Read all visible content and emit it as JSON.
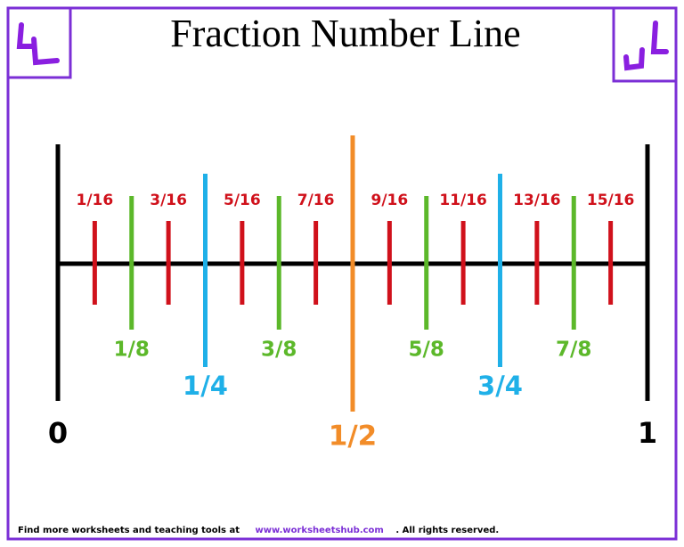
{
  "header": {
    "title": "Fraction Number Line"
  },
  "number_line": {
    "range": [
      0,
      1
    ],
    "endpoints": {
      "color": "#000000",
      "ticks": [
        0,
        1
      ]
    },
    "halves": {
      "color": "#f28c28",
      "ticks": [
        {
          "value": 0.5,
          "label": "1/2"
        }
      ]
    },
    "quarters": {
      "color": "#1fb0e8",
      "ticks": [
        {
          "value": 0.25,
          "label": "1/4"
        },
        {
          "value": 0.75,
          "label": "3/4"
        }
      ]
    },
    "eighths": {
      "color": "#5cb82a",
      "ticks": [
        {
          "value": 0.125,
          "label": "1/8"
        },
        {
          "value": 0.375,
          "label": "3/8"
        },
        {
          "value": 0.625,
          "label": "5/8"
        },
        {
          "value": 0.875,
          "label": "7/8"
        }
      ]
    },
    "sixteenths": {
      "color": "#d0111b",
      "ticks": [
        {
          "value": 0.0625,
          "label": "1/16"
        },
        {
          "value": 0.1875,
          "label": "3/16"
        },
        {
          "value": 0.3125,
          "label": "5/16"
        },
        {
          "value": 0.4375,
          "label": "7/16"
        },
        {
          "value": 0.5625,
          "label": "9/16"
        },
        {
          "value": 0.6875,
          "label": "11/16"
        },
        {
          "value": 0.8125,
          "label": "13/16"
        },
        {
          "value": 0.9375,
          "label": "15/16"
        }
      ]
    }
  },
  "footer": {
    "text": "Find more worksheets and teaching tools at",
    "link": "www.worksheetshub.com",
    "rights": ". All rights reserved."
  }
}
